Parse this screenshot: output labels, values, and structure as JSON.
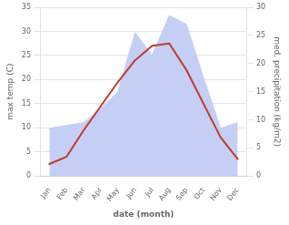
{
  "chart_data": {
    "type": "line",
    "categories": [
      "Jan",
      "Feb",
      "Mar",
      "Apr",
      "May",
      "Jun",
      "Jul",
      "Aug",
      "Sep",
      "Oct",
      "Nov",
      "Dec"
    ],
    "xlabel": "date (month)",
    "ylabel": "max temp (C)",
    "y2label": "med. precipitation (kg/m2)",
    "series": [
      {
        "type": "area",
        "axis": "y2",
        "color": "#c5cff5",
        "values": [
          8.5,
          9.0,
          9.5,
          12.0,
          15.0,
          25.5,
          21.5,
          28.5,
          27.0,
          17.5,
          8.5,
          9.5
        ]
      },
      {
        "type": "line",
        "color": "#c0392b",
        "values": [
          2.5,
          4.0,
          9.5,
          14.5,
          19.5,
          24.0,
          27.0,
          27.5,
          22.0,
          15.0,
          8.0,
          3.5
        ]
      }
    ],
    "ylim": [
      0,
      35
    ],
    "yticks": [
      0,
      5,
      10,
      15,
      20,
      25,
      30,
      35
    ],
    "y2lim": [
      0,
      30
    ],
    "y2ticks": [
      0,
      5,
      10,
      15,
      20,
      25,
      30
    ],
    "grid": true
  }
}
